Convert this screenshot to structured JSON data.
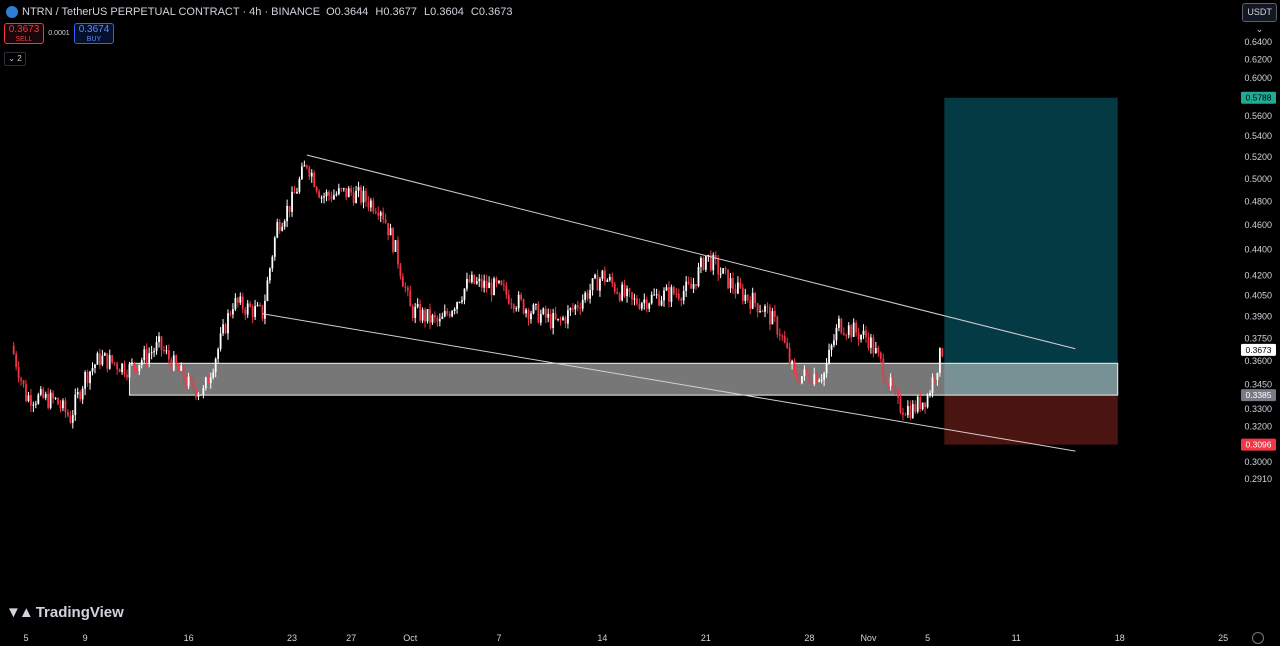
{
  "header": {
    "title": "NTRN / TetherUS PERPETUAL CONTRACT · 4h · BINANCE",
    "open_label": "O",
    "open": "0.3644",
    "high_label": "H",
    "high": "0.3677",
    "low_label": "L",
    "low": "0.3604",
    "close_label": "C",
    "close": "0.3673"
  },
  "trade": {
    "sell_price": "0.3673",
    "sell_label": "SELL",
    "spread": "0.0001",
    "buy_price": "0.3674",
    "buy_label": "BUY"
  },
  "indicators_toggle": "2",
  "currency_button": "USDT",
  "brand": "TradingView",
  "colors": {
    "background": "#000000",
    "up": "#ffffff",
    "down": "#f23645",
    "target_zone": "#033a43",
    "stop_zone": "#4a1410",
    "demand_zone": "#d9d9d9",
    "target_label": "#22ab94",
    "current_label": "#ffffff",
    "stop_label": "#f23645"
  },
  "chart_data": {
    "type": "candlestick",
    "timeframe": "4h",
    "y_scale": "log",
    "ylim": [
      0.28,
      0.67
    ],
    "y_ticks": [
      "0.6400",
      "0.6200",
      "0.6000",
      "0.5800",
      "0.5600",
      "0.5400",
      "0.5200",
      "0.5000",
      "0.4800",
      "0.4600",
      "0.4400",
      "0.4200",
      "0.4050",
      "0.3900",
      "0.3750",
      "0.3600",
      "0.3450",
      "0.3300",
      "0.3200",
      "0.3000",
      "0.2910"
    ],
    "x_ticks": [
      "5",
      "9",
      "16",
      "23",
      "27",
      "Oct",
      "7",
      "14",
      "21",
      "28",
      "Nov",
      "5",
      "11",
      "18",
      "25"
    ],
    "price_labels": {
      "target": "0.5788",
      "current": "0.3673",
      "entry": "0.3385",
      "stop": "0.3096"
    },
    "demand_zone": {
      "top": 0.3585,
      "bottom": 0.3385
    },
    "trendline_upper": [
      {
        "date": "Sep 24",
        "price": 0.522
      },
      {
        "date": "Nov 15",
        "price": 0.368
      }
    ],
    "trendline_lower": [
      {
        "date": "Sep 21",
        "price": 0.392
      },
      {
        "date": "Nov 15",
        "price": 0.306
      }
    ],
    "price_path": [
      {
        "date": "Sep 4",
        "close": 0.37
      },
      {
        "date": "Sep 5",
        "close": 0.338
      },
      {
        "date": "Sep 7",
        "close": 0.335
      },
      {
        "date": "Sep 8",
        "close": 0.325
      },
      {
        "date": "Sep 9",
        "close": 0.35
      },
      {
        "date": "Sep 10",
        "close": 0.362
      },
      {
        "date": "Sep 12",
        "close": 0.355
      },
      {
        "date": "Sep 14",
        "close": 0.37
      },
      {
        "date": "Sep 16",
        "close": 0.345
      },
      {
        "date": "Sep 17",
        "close": 0.34
      },
      {
        "date": "Sep 18",
        "close": 0.368
      },
      {
        "date": "Sep 19",
        "close": 0.4
      },
      {
        "date": "Sep 21",
        "close": 0.392
      },
      {
        "date": "Sep 22",
        "close": 0.46
      },
      {
        "date": "Sep 23",
        "close": 0.48
      },
      {
        "date": "Sep 24",
        "close": 0.515
      },
      {
        "date": "Sep 25",
        "close": 0.485
      },
      {
        "date": "Sep 27",
        "close": 0.488
      },
      {
        "date": "Sep 29",
        "close": 0.475
      },
      {
        "date": "Sep 30",
        "close": 0.44
      },
      {
        "date": "Oct 1",
        "close": 0.395
      },
      {
        "date": "Oct 3",
        "close": 0.385
      },
      {
        "date": "Oct 5",
        "close": 0.415
      },
      {
        "date": "Oct 7",
        "close": 0.41
      },
      {
        "date": "Oct 9",
        "close": 0.395
      },
      {
        "date": "Oct 11",
        "close": 0.385
      },
      {
        "date": "Oct 12",
        "close": 0.395
      },
      {
        "date": "Oct 14",
        "close": 0.42
      },
      {
        "date": "Oct 16",
        "close": 0.4
      },
      {
        "date": "Oct 18",
        "close": 0.405
      },
      {
        "date": "Oct 20",
        "close": 0.41
      },
      {
        "date": "Oct 21",
        "close": 0.435
      },
      {
        "date": "Oct 23",
        "close": 0.41
      },
      {
        "date": "Oct 25",
        "close": 0.395
      },
      {
        "date": "Oct 26",
        "close": 0.38
      },
      {
        "date": "Oct 27",
        "close": 0.35
      },
      {
        "date": "Oct 29",
        "close": 0.352
      },
      {
        "date": "Oct 30",
        "close": 0.385
      },
      {
        "date": "Nov 1",
        "close": 0.375
      },
      {
        "date": "Nov 2",
        "close": 0.355
      },
      {
        "date": "Nov 3",
        "close": 0.332
      },
      {
        "date": "Nov 4",
        "close": 0.33
      },
      {
        "date": "Nov 5",
        "close": 0.338
      },
      {
        "date": "Nov 6",
        "close": 0.3673
      }
    ]
  }
}
